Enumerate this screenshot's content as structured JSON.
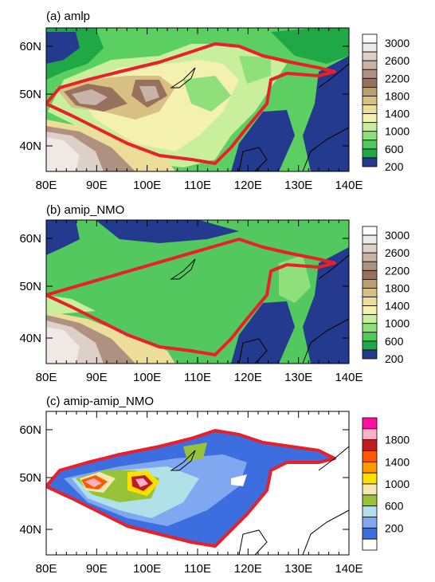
{
  "panels": [
    {
      "id": "a",
      "title": "(a) amlp",
      "colorbar": {
        "labels": [
          "3000",
          "2600",
          "2200",
          "1800",
          "1400",
          "1000",
          "600",
          "200"
        ],
        "colors": [
          "#ffffff",
          "#f0e8e4",
          "#ddd0c9",
          "#c8b3a8",
          "#b09080",
          "#97705e",
          "#b8a070",
          "#d8c082",
          "#ecdd98",
          "#f4f0b0",
          "#c9ef9c",
          "#8fe07b",
          "#52c85e",
          "#1fa845",
          "#243a8e"
        ]
      }
    },
    {
      "id": "b",
      "title": "(b) amip_NMO",
      "colorbar": {
        "labels": [
          "3000",
          "2600",
          "2200",
          "1800",
          "1400",
          "1000",
          "600",
          "200"
        ],
        "colors": [
          "#ffffff",
          "#f0e8e4",
          "#ddd0c9",
          "#c8b3a8",
          "#b09080",
          "#97705e",
          "#b8a070",
          "#d8c082",
          "#ecdd98",
          "#f4f0b0",
          "#c9ef9c",
          "#8fe07b",
          "#52c85e",
          "#1fa845",
          "#243a8e"
        ]
      }
    },
    {
      "id": "c",
      "title": "(c) amip-amip_NMO",
      "colorbar": {
        "labels": [
          "1800",
          "1400",
          "1000",
          "600",
          "200"
        ],
        "colors": [
          "#ff10a0",
          "#ffb0c8",
          "#c01e1e",
          "#ff5a00",
          "#ff9a00",
          "#ffe000",
          "#f4e8b0",
          "#98c238",
          "#b0e0e8",
          "#80a8f0",
          "#3d6ee0",
          "#ffffff"
        ]
      }
    }
  ],
  "axes": {
    "x_ticks": [
      "80E",
      "90E",
      "100E",
      "110E",
      "120E",
      "130E",
      "140E"
    ],
    "y_ticks": [
      "60N",
      "50N",
      "40N"
    ]
  },
  "colors": {
    "outline": "#e8202a",
    "coast": "#000000",
    "ocean_a": "#243a8e"
  }
}
